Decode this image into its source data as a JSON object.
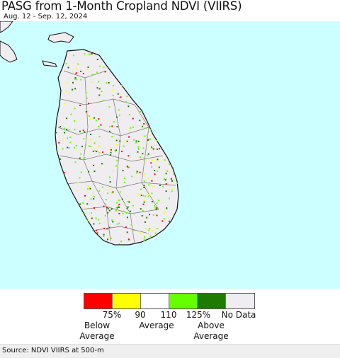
{
  "title": "PASG from 1-Month Cropland NDVI (VIIRS)",
  "date_range": "Aug. 12 - Sep. 12, 2024",
  "legend": {
    "colors": [
      "#ff0000",
      "#ffff00",
      "#ffffff",
      "#66ff00",
      "#1f7a00",
      "#efedf0"
    ],
    "ticks": [
      "75%",
      "90",
      "110",
      "125%",
      "No Data"
    ],
    "categories": {
      "below": [
        "Below",
        "Average"
      ],
      "average": [
        "Average"
      ],
      "above": [
        "Above",
        "Average"
      ]
    }
  },
  "source": "Source: NDVI VIIRS at 500-m",
  "colors": {
    "water": "#ccffff",
    "land_no_data": "#efedf0",
    "boundary": "#777777",
    "coast": "#111111"
  }
}
